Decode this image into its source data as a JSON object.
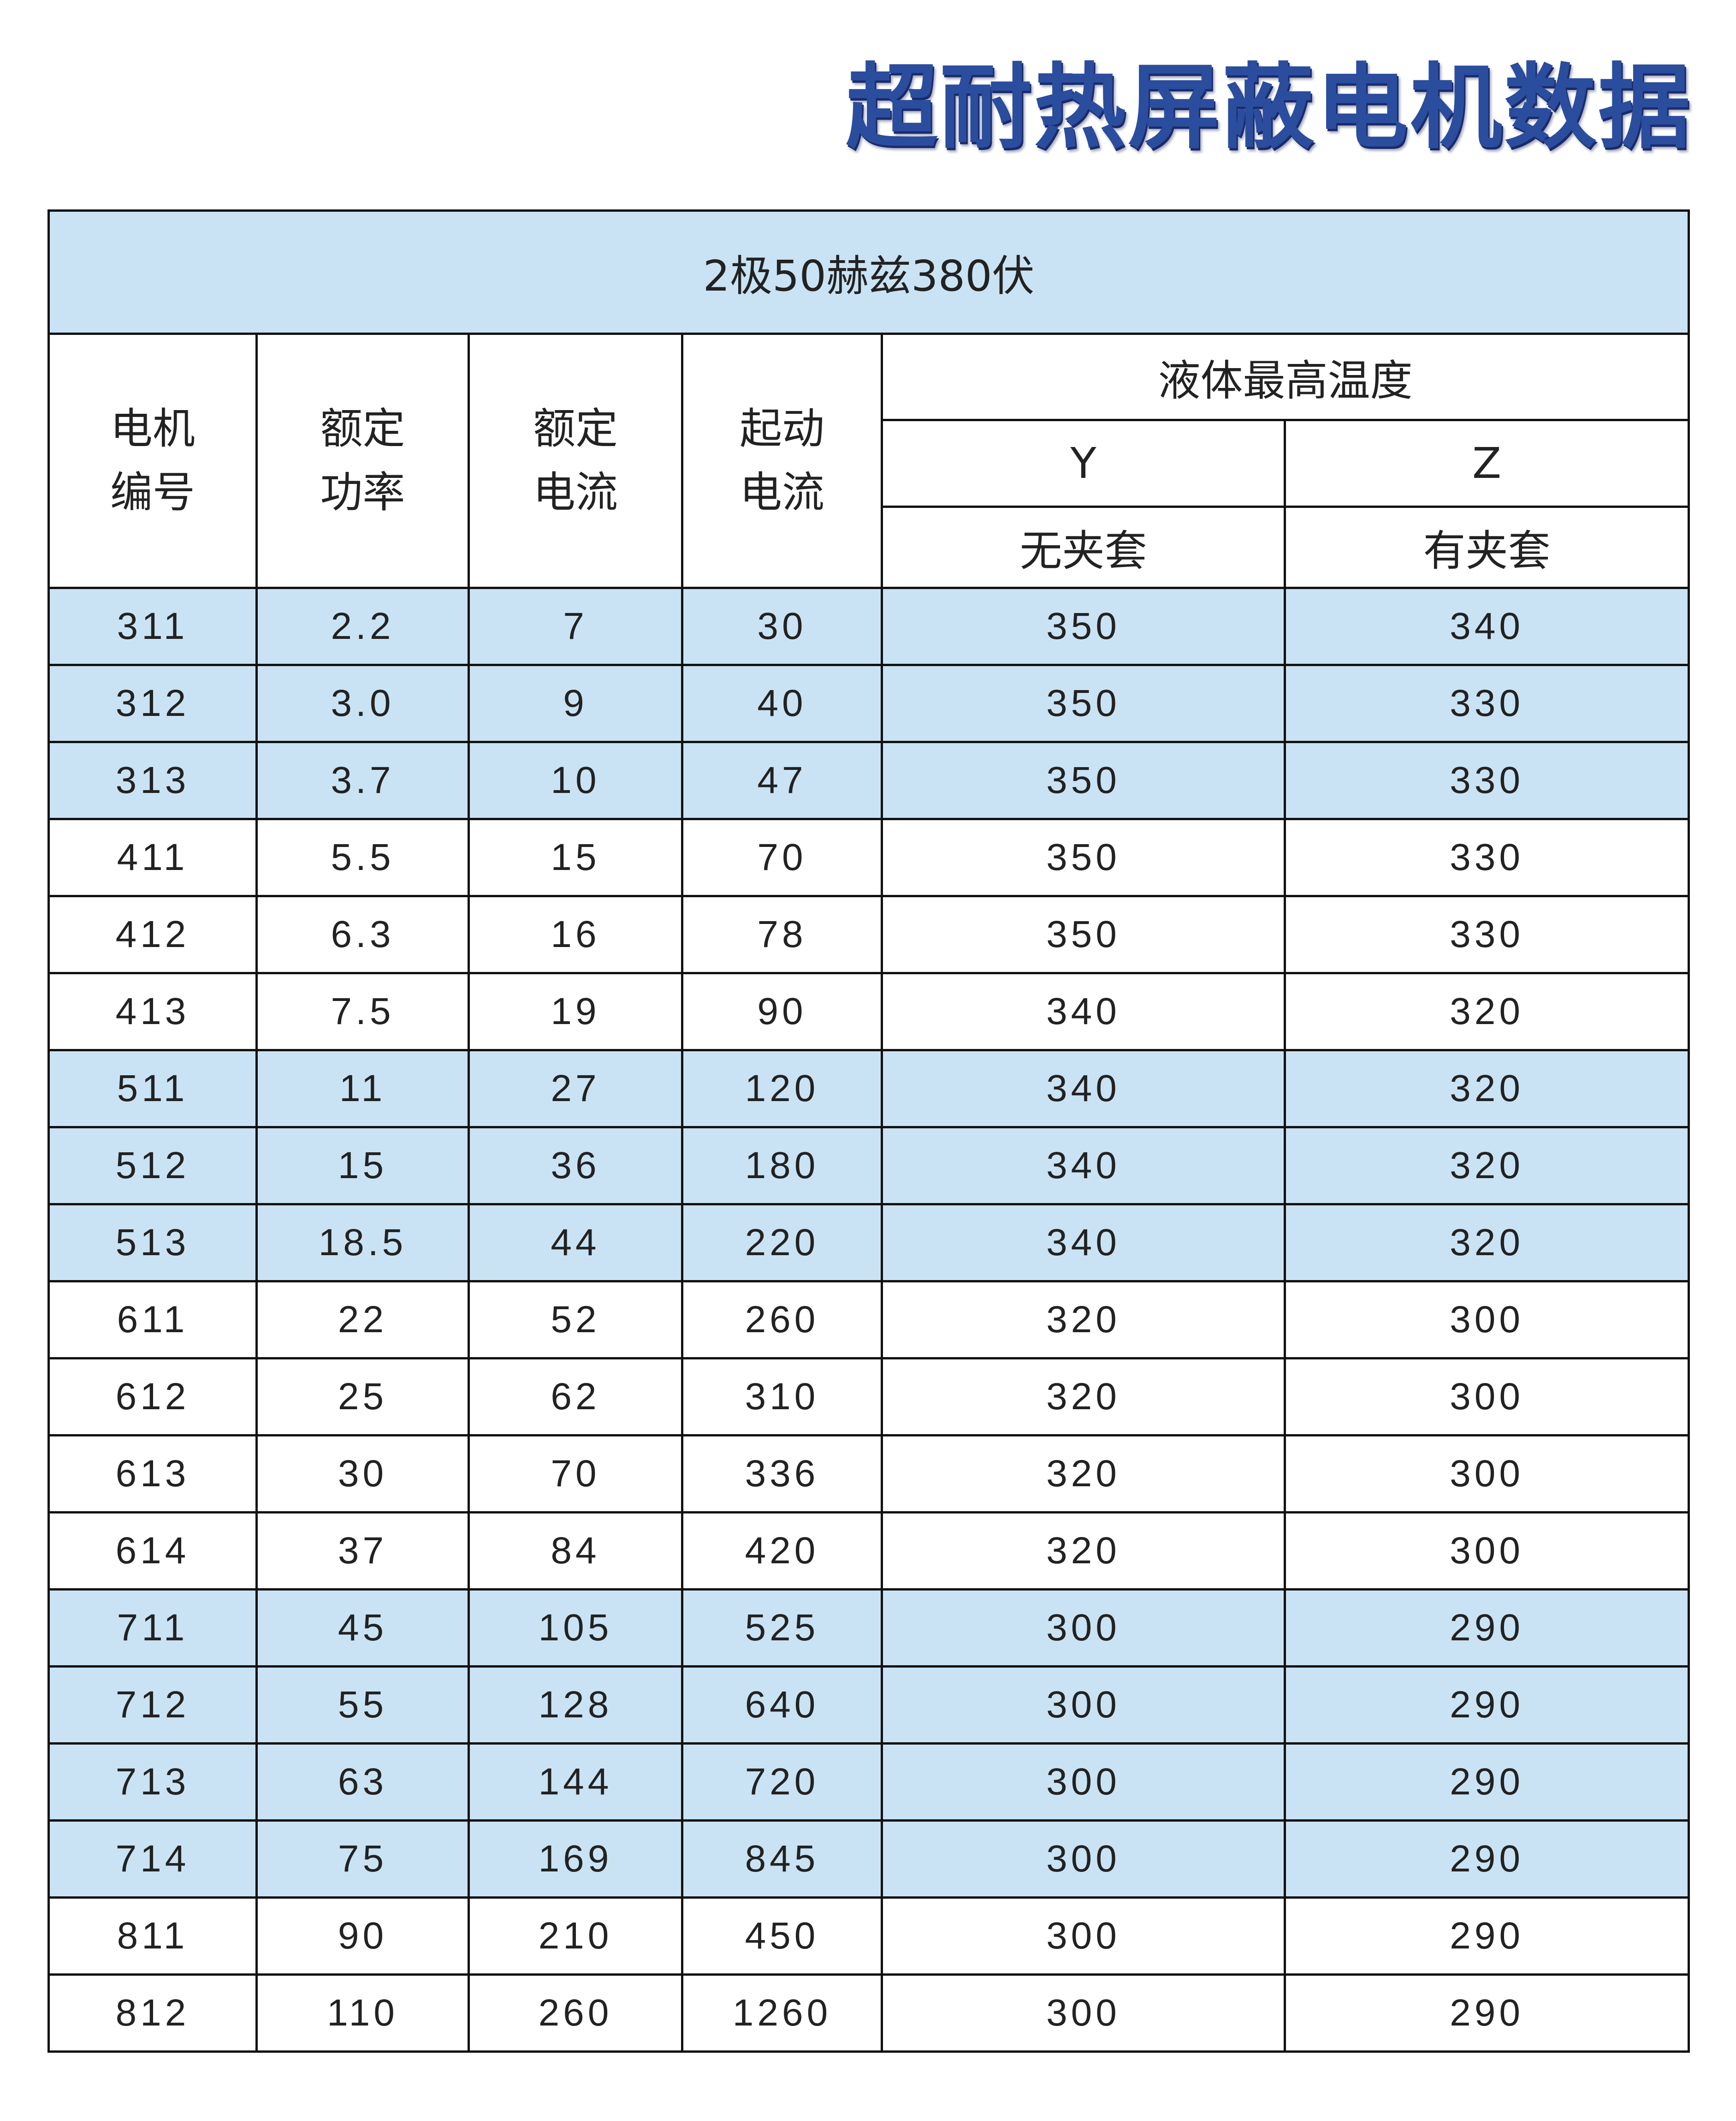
{
  "title": "超耐热屏蔽电机数据",
  "caption": "2极50赫兹380伏",
  "headers": {
    "motor_no": [
      "电机",
      "编号"
    ],
    "rated_power": [
      "额定",
      "功率"
    ],
    "rated_current": [
      "额定",
      "电流"
    ],
    "start_current": [
      "起动",
      "电流"
    ],
    "max_temp": "液体最高温度",
    "y": "Y",
    "z": "Z",
    "y_sub": "无夹套",
    "z_sub": "有夹套"
  },
  "highlight_color": "#c9e3f4",
  "rows": [
    {
      "no": "311",
      "power": "2.2",
      "current": "7",
      "start": "30",
      "y": "350",
      "z": "340",
      "blue": true
    },
    {
      "no": "312",
      "power": "3.0",
      "current": "9",
      "start": "40",
      "y": "350",
      "z": "330",
      "blue": true
    },
    {
      "no": "313",
      "power": "3.7",
      "current": "10",
      "start": "47",
      "y": "350",
      "z": "330",
      "blue": true
    },
    {
      "no": "411",
      "power": "5.5",
      "current": "15",
      "start": "70",
      "y": "350",
      "z": "330",
      "blue": false
    },
    {
      "no": "412",
      "power": "6.3",
      "current": "16",
      "start": "78",
      "y": "350",
      "z": "330",
      "blue": false
    },
    {
      "no": "413",
      "power": "7.5",
      "current": "19",
      "start": "90",
      "y": "340",
      "z": "320",
      "blue": false
    },
    {
      "no": "511",
      "power": "11",
      "current": "27",
      "start": "120",
      "y": "340",
      "z": "320",
      "blue": true
    },
    {
      "no": "512",
      "power": "15",
      "current": "36",
      "start": "180",
      "y": "340",
      "z": "320",
      "blue": true
    },
    {
      "no": "513",
      "power": "18.5",
      "current": "44",
      "start": "220",
      "y": "340",
      "z": "320",
      "blue": true
    },
    {
      "no": "611",
      "power": "22",
      "current": "52",
      "start": "260",
      "y": "320",
      "z": "300",
      "blue": false
    },
    {
      "no": "612",
      "power": "25",
      "current": "62",
      "start": "310",
      "y": "320",
      "z": "300",
      "blue": false
    },
    {
      "no": "613",
      "power": "30",
      "current": "70",
      "start": "336",
      "y": "320",
      "z": "300",
      "blue": false
    },
    {
      "no": "614",
      "power": "37",
      "current": "84",
      "start": "420",
      "y": "320",
      "z": "300",
      "blue": false
    },
    {
      "no": "711",
      "power": "45",
      "current": "105",
      "start": "525",
      "y": "300",
      "z": "290",
      "blue": true
    },
    {
      "no": "712",
      "power": "55",
      "current": "128",
      "start": "640",
      "y": "300",
      "z": "290",
      "blue": true
    },
    {
      "no": "713",
      "power": "63",
      "current": "144",
      "start": "720",
      "y": "300",
      "z": "290",
      "blue": true
    },
    {
      "no": "714",
      "power": "75",
      "current": "169",
      "start": "845",
      "y": "300",
      "z": "290",
      "blue": true
    },
    {
      "no": "811",
      "power": "90",
      "current": "210",
      "start": "450",
      "y": "300",
      "z": "290",
      "blue": false
    },
    {
      "no": "812",
      "power": "110",
      "current": "260",
      "start": "1260",
      "y": "300",
      "z": "290",
      "blue": false
    }
  ]
}
